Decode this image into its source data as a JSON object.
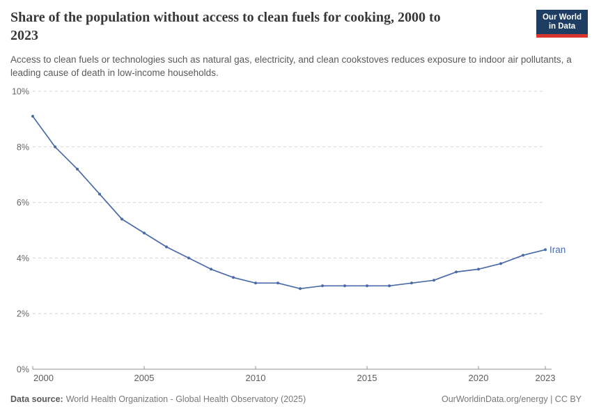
{
  "header": {
    "title": "Share of the population without access to clean fuels for cooking, 2000 to 2023",
    "subtitle": "Access to clean fuels or technologies such as natural gas, electricity, and clean cookstoves reduces exposure to indoor air pollutants, a leading cause of death in low-income households.",
    "logo": {
      "line1": "Our World",
      "line2": "in Data",
      "bg": "#1d3d63",
      "accent": "#d8352e"
    }
  },
  "chart_data": {
    "type": "line",
    "title": "Share of the population without access to clean fuels for cooking, 2000 to 2023",
    "x": [
      2000,
      2001,
      2002,
      2003,
      2004,
      2005,
      2006,
      2007,
      2008,
      2009,
      2010,
      2011,
      2012,
      2013,
      2014,
      2015,
      2016,
      2017,
      2018,
      2019,
      2020,
      2021,
      2022,
      2023
    ],
    "series": [
      {
        "name": "Iran",
        "color": "#4a6ba8",
        "values": [
          9.1,
          8.0,
          7.2,
          6.3,
          5.4,
          4.9,
          4.4,
          4.0,
          3.6,
          3.3,
          3.1,
          3.1,
          2.9,
          3.0,
          3.0,
          3.0,
          3.0,
          3.1,
          3.2,
          3.5,
          3.6,
          3.8,
          4.1,
          4.3
        ]
      }
    ],
    "xlabel": "",
    "ylabel": "",
    "ylim": [
      0,
      10
    ],
    "yticks": {
      "values": [
        0,
        2,
        4,
        6,
        8,
        10
      ],
      "labels": [
        "0%",
        "2%",
        "4%",
        "6%",
        "8%",
        "10%"
      ]
    },
    "xticks": {
      "values": [
        2000,
        2005,
        2010,
        2015,
        2020,
        2023
      ],
      "labels": [
        "2000",
        "2005",
        "2010",
        "2015",
        "2020",
        "2023"
      ]
    },
    "grid": "horizontal-dashed",
    "legend_position": "end-of-line-label",
    "end_label": "Iran"
  },
  "footer": {
    "source_label": "Data source:",
    "source": "World Health Organization - Global Health Observatory (2025)",
    "right": "OurWorldinData.org/energy | CC BY"
  }
}
